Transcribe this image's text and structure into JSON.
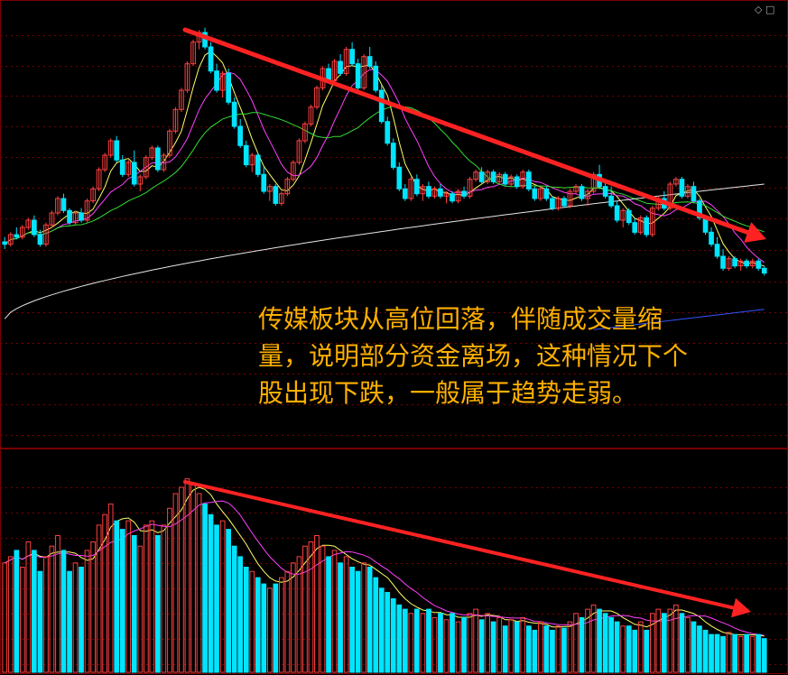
{
  "annotation": {
    "text": "传媒板块从高位回落，伴随成交量缩量，说明部分资金离场，这种情况下个股出现下跌，一般属于趋势走弱。"
  },
  "toolbar": {
    "icons": [
      "diamond-icon",
      "square-icon"
    ]
  },
  "colors": {
    "background": "#000000",
    "grid": "#7a0000",
    "up_candle": "#ff4040",
    "down_candle": "#00e5ff",
    "ma5": "#ffff66",
    "ma10": "#ff40ff",
    "ma20": "#33dd33",
    "ma60": "#e6e6e6",
    "ma120": "#3355ff",
    "trend_arrow": "#ff2222"
  },
  "chart_data": [
    {
      "type": "candlestick",
      "panel": "price",
      "candles": [
        [
          4.2,
          4.4,
          3.9,
          4.1
        ],
        [
          4.1,
          4.6,
          4.0,
          4.5
        ],
        [
          4.5,
          4.8,
          4.3,
          4.4
        ],
        [
          4.4,
          4.9,
          4.3,
          4.8
        ],
        [
          4.8,
          5.2,
          4.7,
          5.1
        ],
        [
          5.1,
          5.3,
          4.4,
          4.5
        ],
        [
          4.5,
          4.7,
          4.0,
          4.1
        ],
        [
          4.1,
          5.0,
          4.0,
          4.9
        ],
        [
          4.9,
          5.5,
          4.8,
          5.4
        ],
        [
          5.4,
          6.1,
          5.3,
          6.0
        ],
        [
          6.0,
          6.2,
          5.4,
          5.5
        ],
        [
          5.5,
          5.6,
          4.9,
          5.0
        ],
        [
          5.0,
          5.5,
          4.9,
          5.4
        ],
        [
          5.4,
          5.6,
          5.0,
          5.1
        ],
        [
          5.1,
          6.0,
          5.0,
          5.9
        ],
        [
          5.9,
          6.5,
          5.8,
          6.4
        ],
        [
          6.4,
          7.3,
          6.3,
          7.2
        ],
        [
          7.2,
          7.9,
          7.1,
          7.8
        ],
        [
          7.8,
          8.5,
          7.7,
          8.4
        ],
        [
          8.4,
          8.6,
          7.5,
          7.6
        ],
        [
          7.6,
          7.8,
          6.9,
          7.0
        ],
        [
          7.0,
          7.6,
          6.9,
          7.5
        ],
        [
          7.5,
          8.0,
          6.5,
          6.6
        ],
        [
          6.6,
          7.0,
          6.3,
          6.9
        ],
        [
          6.9,
          7.8,
          6.8,
          7.7
        ],
        [
          7.7,
          8.2,
          7.6,
          8.1
        ],
        [
          8.1,
          8.2,
          7.1,
          7.2
        ],
        [
          7.2,
          7.9,
          7.1,
          7.8
        ],
        [
          7.8,
          8.9,
          7.7,
          8.8
        ],
        [
          8.8,
          9.8,
          8.7,
          9.7
        ],
        [
          9.7,
          10.6,
          9.6,
          10.5
        ],
        [
          10.5,
          11.7,
          10.4,
          11.6
        ],
        [
          11.6,
          12.6,
          11.5,
          12.5
        ],
        [
          12.5,
          13.0,
          12.2,
          12.9
        ],
        [
          12.9,
          13.1,
          12.2,
          12.3
        ],
        [
          12.3,
          12.5,
          11.2,
          11.3
        ],
        [
          11.3,
          11.6,
          10.4,
          10.5
        ],
        [
          10.5,
          11.3,
          10.2,
          11.2
        ],
        [
          11.2,
          11.4,
          9.9,
          10.0
        ],
        [
          10.0,
          10.2,
          8.9,
          9.0
        ],
        [
          9.0,
          9.3,
          8.1,
          8.2
        ],
        [
          8.2,
          8.4,
          7.3,
          7.4
        ],
        [
          7.4,
          7.9,
          7.1,
          7.8
        ],
        [
          7.8,
          7.9,
          6.9,
          7.0
        ],
        [
          7.0,
          7.3,
          6.2,
          6.3
        ],
        [
          6.3,
          6.6,
          5.9,
          6.5
        ],
        [
          6.5,
          6.6,
          5.7,
          5.8
        ],
        [
          5.8,
          6.3,
          5.7,
          6.2
        ],
        [
          6.2,
          6.9,
          6.1,
          6.8
        ],
        [
          6.8,
          7.6,
          6.7,
          7.5
        ],
        [
          7.5,
          8.5,
          7.4,
          8.4
        ],
        [
          8.4,
          9.2,
          8.3,
          9.1
        ],
        [
          9.1,
          9.9,
          9.0,
          9.8
        ],
        [
          9.8,
          10.7,
          9.7,
          10.6
        ],
        [
          10.6,
          11.5,
          10.5,
          11.4
        ],
        [
          11.4,
          11.6,
          10.8,
          10.9
        ],
        [
          10.9,
          11.8,
          10.8,
          11.7
        ],
        [
          11.7,
          12.0,
          11.1,
          11.2
        ],
        [
          11.2,
          12.3,
          11.1,
          12.2
        ],
        [
          12.2,
          12.5,
          11.5,
          11.6
        ],
        [
          11.6,
          11.8,
          10.5,
          10.6
        ],
        [
          10.6,
          12.0,
          10.5,
          11.9
        ],
        [
          11.9,
          12.3,
          11.4,
          11.5
        ],
        [
          11.5,
          11.7,
          10.4,
          10.5
        ],
        [
          10.5,
          10.7,
          9.1,
          9.2
        ],
        [
          9.2,
          9.4,
          8.2,
          8.3
        ],
        [
          8.3,
          8.5,
          7.2,
          7.3
        ],
        [
          7.3,
          7.5,
          6.3,
          6.4
        ],
        [
          6.4,
          6.6,
          5.9,
          6.0
        ],
        [
          6.0,
          6.9,
          5.9,
          6.8
        ],
        [
          6.8,
          7.0,
          6.1,
          6.2
        ],
        [
          6.2,
          6.6,
          5.9,
          6.5
        ],
        [
          6.5,
          6.7,
          6.0,
          6.1
        ],
        [
          6.1,
          6.5,
          6.0,
          6.4
        ],
        [
          6.4,
          6.6,
          6.0,
          6.1
        ],
        [
          6.1,
          6.3,
          5.8,
          6.2
        ],
        [
          6.2,
          6.3,
          5.8,
          5.9
        ],
        [
          5.9,
          6.4,
          5.8,
          6.3
        ],
        [
          6.3,
          6.5,
          6.0,
          6.1
        ],
        [
          6.1,
          6.9,
          6.0,
          6.8
        ],
        [
          6.8,
          7.2,
          6.7,
          7.1
        ],
        [
          7.1,
          7.3,
          6.6,
          6.7
        ],
        [
          6.7,
          7.2,
          6.6,
          7.1
        ],
        [
          7.1,
          7.2,
          6.6,
          6.7
        ],
        [
          6.7,
          7.1,
          6.6,
          7.0
        ],
        [
          7.0,
          7.1,
          6.5,
          6.6
        ],
        [
          6.6,
          7.0,
          6.5,
          6.9
        ],
        [
          6.9,
          7.0,
          6.4,
          6.5
        ],
        [
          6.5,
          7.2,
          6.4,
          7.1
        ],
        [
          7.1,
          7.2,
          6.3,
          6.4
        ],
        [
          6.4,
          6.5,
          5.9,
          6.0
        ],
        [
          6.0,
          6.5,
          5.9,
          6.4
        ],
        [
          6.4,
          6.5,
          5.9,
          6.0
        ],
        [
          6.0,
          6.1,
          5.5,
          5.6
        ],
        [
          5.6,
          6.1,
          5.5,
          6.0
        ],
        [
          6.0,
          6.1,
          5.6,
          5.7
        ],
        [
          5.7,
          6.4,
          5.6,
          6.3
        ],
        [
          6.3,
          6.6,
          6.2,
          6.5
        ],
        [
          6.5,
          6.6,
          5.9,
          6.0
        ],
        [
          6.0,
          6.4,
          5.7,
          6.3
        ],
        [
          6.3,
          7.1,
          6.2,
          7.0
        ],
        [
          7.0,
          7.4,
          6.4,
          6.5
        ],
        [
          6.5,
          6.7,
          6.0,
          6.1
        ],
        [
          6.1,
          6.5,
          5.6,
          5.7
        ],
        [
          5.7,
          5.9,
          5.0,
          5.1
        ],
        [
          5.1,
          5.6,
          4.8,
          5.5
        ],
        [
          5.5,
          5.6,
          4.9,
          5.0
        ],
        [
          5.0,
          5.2,
          4.5,
          4.6
        ],
        [
          4.6,
          5.3,
          4.5,
          5.2
        ],
        [
          5.2,
          5.3,
          4.4,
          4.5
        ],
        [
          4.5,
          5.7,
          4.4,
          5.6
        ],
        [
          5.6,
          6.1,
          5.5,
          6.0
        ],
        [
          6.0,
          6.3,
          5.5,
          5.6
        ],
        [
          5.6,
          6.7,
          5.5,
          6.6
        ],
        [
          6.6,
          6.9,
          6.5,
          6.8
        ],
        [
          6.8,
          6.9,
          6.0,
          6.1
        ],
        [
          6.1,
          6.6,
          6.0,
          6.5
        ],
        [
          6.5,
          6.7,
          5.8,
          5.9
        ],
        [
          5.9,
          6.0,
          5.1,
          5.2
        ],
        [
          5.2,
          5.3,
          4.5,
          4.6
        ],
        [
          4.6,
          4.8,
          4.0,
          4.1
        ],
        [
          4.1,
          4.4,
          3.5,
          3.6
        ],
        [
          3.6,
          3.9,
          3.0,
          3.1
        ],
        [
          3.1,
          3.6,
          3.0,
          3.5
        ],
        [
          3.5,
          3.6,
          3.1,
          3.2
        ],
        [
          3.2,
          3.5,
          3.0,
          3.4
        ],
        [
          3.4,
          3.5,
          3.1,
          3.2
        ],
        [
          3.2,
          3.5,
          3.1,
          3.4
        ],
        [
          3.4,
          3.5,
          3.0,
          3.1
        ],
        [
          3.1,
          3.2,
          2.8,
          2.9
        ]
      ],
      "moving_averages": [
        "MA5",
        "MA10",
        "MA20",
        "MA60",
        "MA120"
      ],
      "trend_line": "down",
      "grid": true
    },
    {
      "type": "bar",
      "panel": "volume",
      "values": [
        52,
        55,
        58,
        50,
        62,
        58,
        48,
        55,
        60,
        65,
        58,
        48,
        52,
        50,
        58,
        62,
        70,
        75,
        80,
        72,
        68,
        72,
        65,
        60,
        70,
        72,
        65,
        70,
        78,
        85,
        88,
        92,
        90,
        85,
        80,
        75,
        70,
        72,
        68,
        60,
        55,
        50,
        48,
        45,
        42,
        40,
        42,
        45,
        48,
        52,
        55,
        60,
        62,
        65,
        60,
        55,
        58,
        52,
        55,
        50,
        48,
        52,
        50,
        45,
        40,
        38,
        35,
        32,
        30,
        28,
        30,
        28,
        30,
        26,
        28,
        25,
        28,
        24,
        26,
        28,
        30,
        25,
        28,
        24,
        26,
        22,
        25,
        24,
        26,
        22,
        20,
        24,
        22,
        20,
        22,
        21,
        24,
        28,
        26,
        30,
        32,
        30,
        28,
        26,
        24,
        22,
        22,
        20,
        24,
        20,
        28,
        30,
        28,
        30,
        32,
        28,
        26,
        24,
        22,
        20,
        18,
        18,
        17,
        19,
        18,
        17,
        18,
        17,
        18,
        16
      ],
      "up": [
        1,
        1,
        0,
        1,
        1,
        0,
        0,
        1,
        1,
        1,
        0,
        0,
        1,
        0,
        1,
        1,
        1,
        1,
        1,
        0,
        0,
        1,
        0,
        1,
        1,
        1,
        0,
        1,
        1,
        1,
        1,
        1,
        1,
        1,
        0,
        0,
        0,
        1,
        0,
        0,
        0,
        0,
        1,
        0,
        0,
        1,
        0,
        1,
        1,
        1,
        1,
        1,
        1,
        1,
        1,
        0,
        1,
        0,
        1,
        0,
        0,
        1,
        0,
        0,
        0,
        0,
        0,
        0,
        0,
        1,
        0,
        1,
        0,
        1,
        0,
        1,
        0,
        1,
        0,
        1,
        1,
        0,
        1,
        0,
        1,
        0,
        1,
        0,
        1,
        0,
        0,
        1,
        0,
        0,
        1,
        0,
        1,
        1,
        0,
        1,
        1,
        0,
        0,
        0,
        0,
        1,
        0,
        0,
        1,
        0,
        1,
        1,
        0,
        1,
        1,
        0,
        1,
        0,
        0,
        0,
        0,
        0,
        0,
        1,
        0,
        1,
        0,
        1,
        0,
        0
      ],
      "moving_averages": [
        "MA5",
        "MA10"
      ],
      "trend_line": "down",
      "grid": true
    }
  ]
}
